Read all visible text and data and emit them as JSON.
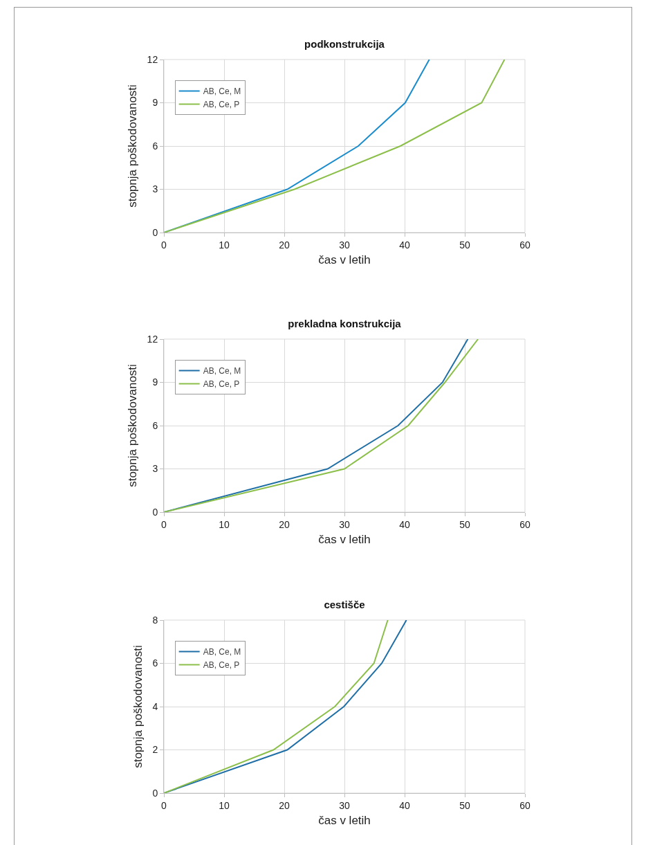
{
  "chart_data": [
    {
      "type": "line",
      "title": "podkonstrukcija",
      "xlabel": "čas v letih",
      "ylabel": "stopnja poškodovanosti",
      "xlim": [
        0,
        60
      ],
      "xticks": [
        0,
        10,
        20,
        30,
        40,
        50,
        60
      ],
      "ylim": [
        0,
        12
      ],
      "yticks": [
        0,
        3,
        6,
        9,
        12
      ],
      "grid": true,
      "legend": "top left",
      "marker": "none",
      "line_style": "solid",
      "series": [
        {
          "name": "AB, Ce, M",
          "color": "#1a8ccc",
          "x": [
            0,
            20.5,
            32.3,
            40.1,
            44.1
          ],
          "values": [
            0,
            3,
            6,
            9,
            12
          ]
        },
        {
          "name": "AB, Ce, P",
          "color": "#8cbf4a",
          "x": [
            0,
            21.7,
            39.3,
            52.8,
            56.6
          ],
          "values": [
            0,
            3,
            6,
            9,
            12
          ]
        }
      ]
    },
    {
      "type": "line",
      "title": "prekladna konstrukcija",
      "xlabel": "čas v letih",
      "ylabel": "stopnja poškodovanosti",
      "xlim": [
        0,
        60
      ],
      "xticks": [
        0,
        10,
        20,
        30,
        40,
        50,
        60
      ],
      "ylim": [
        0,
        12
      ],
      "yticks": [
        0,
        3,
        6,
        9,
        12
      ],
      "grid": true,
      "legend": "top left",
      "marker": "none",
      "line_style": "solid",
      "series": [
        {
          "name": "AB, Ce, M",
          "color": "#1f6fa6",
          "x": [
            0,
            27.2,
            38.9,
            46.3,
            50.5
          ],
          "values": [
            0,
            3,
            6,
            9,
            12
          ]
        },
        {
          "name": "AB, Ce, P",
          "color": "#8cbf4a",
          "x": [
            0,
            30,
            40.6,
            46.7,
            52.2
          ],
          "values": [
            0,
            3,
            6,
            9,
            12
          ]
        }
      ]
    },
    {
      "type": "line",
      "title": "cestišče",
      "xlabel": "čas v letih",
      "ylabel": "stopnja poškodovanosti",
      "xlim": [
        0,
        60
      ],
      "xticks": [
        0,
        10,
        20,
        30,
        40,
        50,
        60
      ],
      "ylim": [
        0,
        8
      ],
      "yticks": [
        0,
        2,
        4,
        6,
        8
      ],
      "grid": true,
      "legend": "top left",
      "marker": "none",
      "line_style": "solid",
      "series": [
        {
          "name": "AB, Ce, M",
          "color": "#1f6fa6",
          "x": [
            0,
            20.5,
            29.9,
            36.2,
            40.3
          ],
          "values": [
            0,
            2,
            4,
            6,
            8
          ]
        },
        {
          "name": "AB, Ce, P",
          "color": "#8cbf4a",
          "x": [
            0,
            18.2,
            28.4,
            34.9,
            37.2
          ],
          "values": [
            0,
            2,
            4,
            6,
            8
          ]
        }
      ]
    }
  ]
}
